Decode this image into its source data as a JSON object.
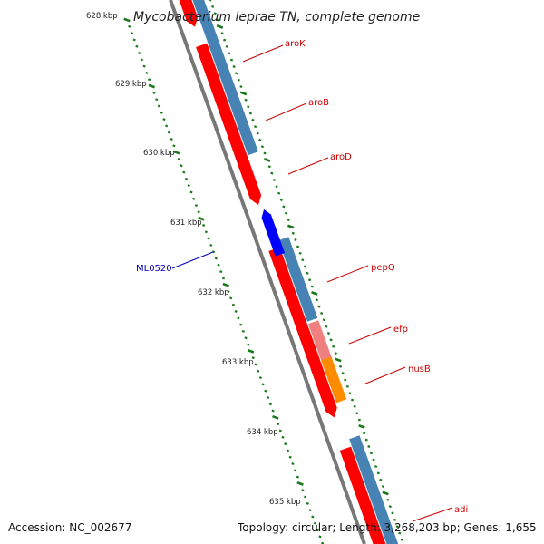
{
  "title": "Mycobacterium leprae TN, complete genome",
  "ticks": [
    "628 kbp",
    "629 kbp",
    "630 kbp",
    "631 kbp",
    "632 kbp",
    "633 kbp",
    "634 kbp",
    "635 kbp"
  ],
  "gene_labels": [
    {
      "name": "aroK",
      "color": "#cc0000"
    },
    {
      "name": "aroB",
      "color": "#cc0000"
    },
    {
      "name": "aroD",
      "color": "#cc0000"
    },
    {
      "name": "ML0520",
      "color": "#0000bb"
    },
    {
      "name": "pepQ",
      "color": "#cc0000"
    },
    {
      "name": "efp",
      "color": "#cc0000"
    },
    {
      "name": "nusB",
      "color": "#cc0000"
    },
    {
      "name": "adi",
      "color": "#cc0000"
    }
  ],
  "footer": {
    "accession": "Accession: NC_002677",
    "topology": "Topology: circular; Length: 3,268,203 bp; Genes: 1,655"
  },
  "colors": {
    "cds": "#ff0000",
    "gene_bar": "#4682b4",
    "reverse_cds": "#0000ff",
    "efp_bar": "#f08080",
    "nusB_bar": "#ff8c00",
    "backbone": "#777777",
    "tick_marks": "#1a7a1a",
    "callout_red": "#cc0000",
    "callout_blue": "#0000bb"
  }
}
